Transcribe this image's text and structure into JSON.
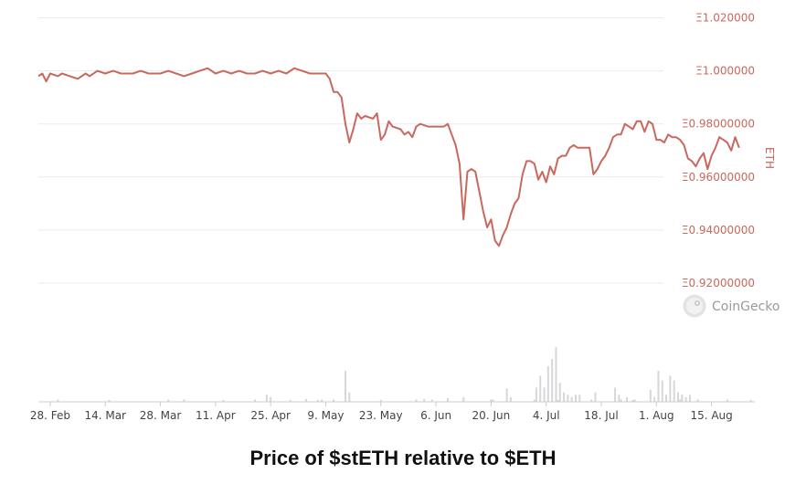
{
  "caption": "Price of $stETH relative to $ETH",
  "watermark": "CoinGecko",
  "colors": {
    "line": "#c8685e",
    "volume": "#d7d7db",
    "grid": "#ececec",
    "axis_text": "#c8685e"
  },
  "chart_data": {
    "type": "line",
    "title": "Price of $stETH relative to $ETH",
    "ylabel": "ETH",
    "ylim": [
      0.92,
      1.02
    ],
    "y_ticks": [
      "Ξ1.020000",
      "Ξ1.000000",
      "Ξ0.98000000",
      "Ξ0.96000000",
      "Ξ0.94000000",
      "Ξ0.92000000"
    ],
    "x_ticks": [
      "28. Feb",
      "14. Mar",
      "28. Mar",
      "11. Apr",
      "25. Apr",
      "9. May",
      "23. May",
      "6. Jun",
      "20. Jun",
      "4. Jul",
      "18. Jul",
      "1. Aug",
      "15. Aug"
    ],
    "x_range_days": [
      -3,
      179
    ],
    "legend": "none",
    "grid": true,
    "series": [
      {
        "values": [
          [
            -3,
            0.998
          ],
          [
            -2,
            0.999
          ],
          [
            -1,
            0.996
          ],
          [
            0,
            0.999
          ],
          [
            2,
            0.998
          ],
          [
            3,
            0.999
          ],
          [
            5,
            0.998
          ],
          [
            7,
            0.997
          ],
          [
            9,
            0.999
          ],
          [
            10,
            0.998
          ],
          [
            12,
            1.0
          ],
          [
            14,
            0.999
          ],
          [
            16,
            1.0
          ],
          [
            18,
            0.999
          ],
          [
            21,
            0.999
          ],
          [
            23,
            1.0
          ],
          [
            25,
            0.999
          ],
          [
            28,
            0.999
          ],
          [
            30,
            1.0
          ],
          [
            32,
            0.999
          ],
          [
            34,
            0.998
          ],
          [
            36,
            0.999
          ],
          [
            38,
            1.0
          ],
          [
            40,
            1.001
          ],
          [
            42,
            0.999
          ],
          [
            44,
            1.0
          ],
          [
            46,
            0.999
          ],
          [
            48,
            1.0
          ],
          [
            50,
            0.999
          ],
          [
            52,
            0.999
          ],
          [
            54,
            1.0
          ],
          [
            56,
            0.999
          ],
          [
            58,
            1.0
          ],
          [
            60,
            0.999
          ],
          [
            62,
            1.001
          ],
          [
            64,
            1.0
          ],
          [
            66,
            0.999
          ],
          [
            68,
            0.999
          ],
          [
            70,
            0.999
          ],
          [
            71,
            0.997
          ],
          [
            72,
            0.992
          ],
          [
            73,
            0.992
          ],
          [
            74,
            0.99
          ],
          [
            75,
            0.98
          ],
          [
            76,
            0.973
          ],
          [
            77,
            0.978
          ],
          [
            78,
            0.984
          ],
          [
            79,
            0.982
          ],
          [
            80,
            0.983
          ],
          [
            82,
            0.982
          ],
          [
            83,
            0.984
          ],
          [
            84,
            0.974
          ],
          [
            85,
            0.976
          ],
          [
            86,
            0.981
          ],
          [
            87,
            0.979
          ],
          [
            89,
            0.978
          ],
          [
            90,
            0.976
          ],
          [
            91,
            0.977
          ],
          [
            92,
            0.975
          ],
          [
            93,
            0.979
          ],
          [
            94,
            0.98
          ],
          [
            96,
            0.979
          ],
          [
            98,
            0.979
          ],
          [
            100,
            0.979
          ],
          [
            101,
            0.98
          ],
          [
            102,
            0.976
          ],
          [
            103,
            0.972
          ],
          [
            104,
            0.965
          ],
          [
            105,
            0.944
          ],
          [
            106,
            0.962
          ],
          [
            107,
            0.963
          ],
          [
            108,
            0.962
          ],
          [
            110,
            0.947
          ],
          [
            111,
            0.941
          ],
          [
            112,
            0.944
          ],
          [
            113,
            0.936
          ],
          [
            114,
            0.934
          ],
          [
            115,
            0.938
          ],
          [
            116,
            0.941
          ],
          [
            117,
            0.946
          ],
          [
            118,
            0.95
          ],
          [
            119,
            0.952
          ],
          [
            120,
            0.961
          ],
          [
            121,
            0.966
          ],
          [
            122,
            0.966
          ],
          [
            123,
            0.965
          ],
          [
            124,
            0.959
          ],
          [
            125,
            0.962
          ],
          [
            126,
            0.958
          ],
          [
            127,
            0.964
          ],
          [
            128,
            0.961
          ],
          [
            129,
            0.967
          ],
          [
            130,
            0.968
          ],
          [
            131,
            0.968
          ],
          [
            132,
            0.971
          ],
          [
            133,
            0.972
          ],
          [
            134,
            0.971
          ],
          [
            136,
            0.971
          ],
          [
            137,
            0.971
          ],
          [
            138,
            0.961
          ],
          [
            139,
            0.963
          ],
          [
            140,
            0.966
          ],
          [
            141,
            0.968
          ],
          [
            142,
            0.971
          ],
          [
            143,
            0.975
          ],
          [
            144,
            0.976
          ],
          [
            145,
            0.976
          ],
          [
            146,
            0.98
          ],
          [
            147,
            0.979
          ],
          [
            148,
            0.978
          ],
          [
            149,
            0.981
          ],
          [
            150,
            0.981
          ],
          [
            151,
            0.977
          ],
          [
            152,
            0.981
          ],
          [
            153,
            0.98
          ],
          [
            154,
            0.974
          ],
          [
            155,
            0.974
          ],
          [
            156,
            0.973
          ],
          [
            157,
            0.976
          ],
          [
            158,
            0.975
          ],
          [
            159,
            0.975
          ],
          [
            160,
            0.974
          ],
          [
            161,
            0.972
          ],
          [
            162,
            0.967
          ],
          [
            163,
            0.966
          ],
          [
            164,
            0.964
          ],
          [
            165,
            0.967
          ],
          [
            166,
            0.969
          ],
          [
            167,
            0.963
          ],
          [
            168,
            0.968
          ],
          [
            169,
            0.971
          ],
          [
            170,
            0.975
          ],
          [
            171,
            0.974
          ],
          [
            172,
            0.973
          ],
          [
            173,
            0.97
          ],
          [
            174,
            0.975
          ],
          [
            175,
            0.971
          ]
        ]
      }
    ],
    "volume_series": {
      "values": [
        [
          2,
          0.5
        ],
        [
          15,
          0.4
        ],
        [
          30,
          0.5
        ],
        [
          34,
          0.5
        ],
        [
          44,
          0.4
        ],
        [
          52,
          0.5
        ],
        [
          55,
          1.5
        ],
        [
          56,
          1
        ],
        [
          61,
          0.4
        ],
        [
          65,
          0.6
        ],
        [
          68,
          0.4
        ],
        [
          69,
          0.5
        ],
        [
          72,
          0.5
        ],
        [
          75,
          6.5
        ],
        [
          76,
          2
        ],
        [
          84,
          0.4
        ],
        [
          93,
          0.5
        ],
        [
          101,
          0.8
        ],
        [
          112,
          0.5
        ],
        [
          116,
          2.8
        ],
        [
          117,
          1
        ],
        [
          123,
          0.5
        ],
        [
          129,
          0.4
        ],
        [
          145,
          0.5
        ],
        [
          148,
          0.4
        ],
        [
          160,
          0.5
        ],
        [
          172,
          0.5
        ],
        [
          178,
          0.4
        ],
        [
          95,
          0.6
        ],
        [
          97,
          0.5
        ],
        [
          105,
          1
        ],
        [
          112.5,
          0.5
        ],
        [
          123.5,
          3
        ],
        [
          124.5,
          5.5
        ],
        [
          125.5,
          3
        ],
        [
          126.5,
          7.5
        ],
        [
          127.5,
          9
        ],
        [
          128.5,
          11.5
        ],
        [
          129.5,
          4
        ],
        [
          130.5,
          2
        ],
        [
          131.5,
          1.5
        ],
        [
          132.5,
          1
        ],
        [
          133.5,
          1.5
        ],
        [
          134.5,
          1.5
        ],
        [
          137.5,
          0.5
        ],
        [
          138.5,
          2
        ],
        [
          143.5,
          3
        ],
        [
          144.5,
          1.5
        ],
        [
          146.5,
          1
        ],
        [
          148.5,
          0.5
        ],
        [
          152.5,
          2.5
        ],
        [
          153.5,
          1
        ],
        [
          154.5,
          6.5
        ],
        [
          155.5,
          4.5
        ],
        [
          156.5,
          1.5
        ],
        [
          157.5,
          5.5
        ],
        [
          158.5,
          4.5
        ],
        [
          159.5,
          2
        ],
        [
          160.5,
          1.5
        ],
        [
          161.5,
          1
        ],
        [
          162.5,
          1.5
        ],
        [
          164.5,
          0.5
        ]
      ]
    }
  }
}
